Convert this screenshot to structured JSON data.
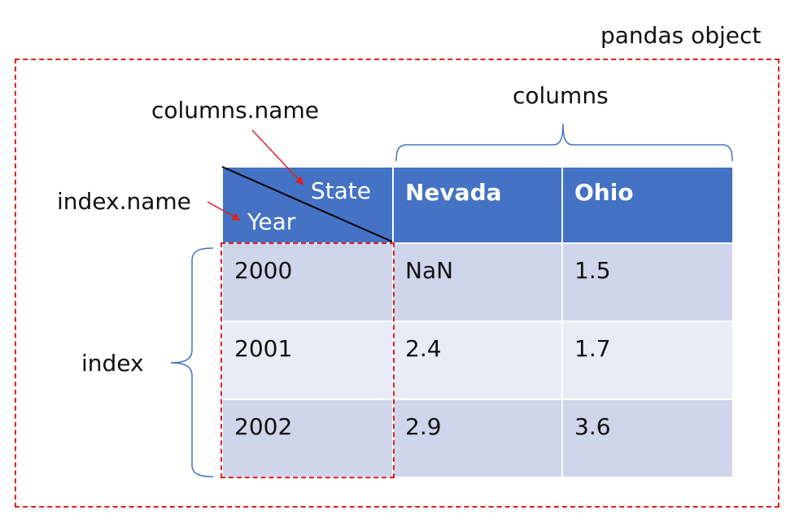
{
  "labels": {
    "pandas_object": "pandas object",
    "columns": "columns",
    "columns_name": "columns.name",
    "index_name": "index.name",
    "index": "index"
  },
  "table": {
    "columns_name": "State",
    "index_name": "Year",
    "headers": [
      "Nevada",
      "Ohio"
    ],
    "rows": [
      {
        "index": "2000",
        "values": [
          "NaN",
          "1.5"
        ]
      },
      {
        "index": "2001",
        "values": [
          "2.4",
          "1.7"
        ]
      },
      {
        "index": "2002",
        "values": [
          "2.9",
          "3.6"
        ]
      }
    ]
  },
  "colors": {
    "header_bg": "#4472c4",
    "row_dark": "#cfd5ea",
    "row_light": "#e9ebf5",
    "dashed_border": "#e02020",
    "arrow": "#e02020",
    "brace": "#4472c4"
  }
}
